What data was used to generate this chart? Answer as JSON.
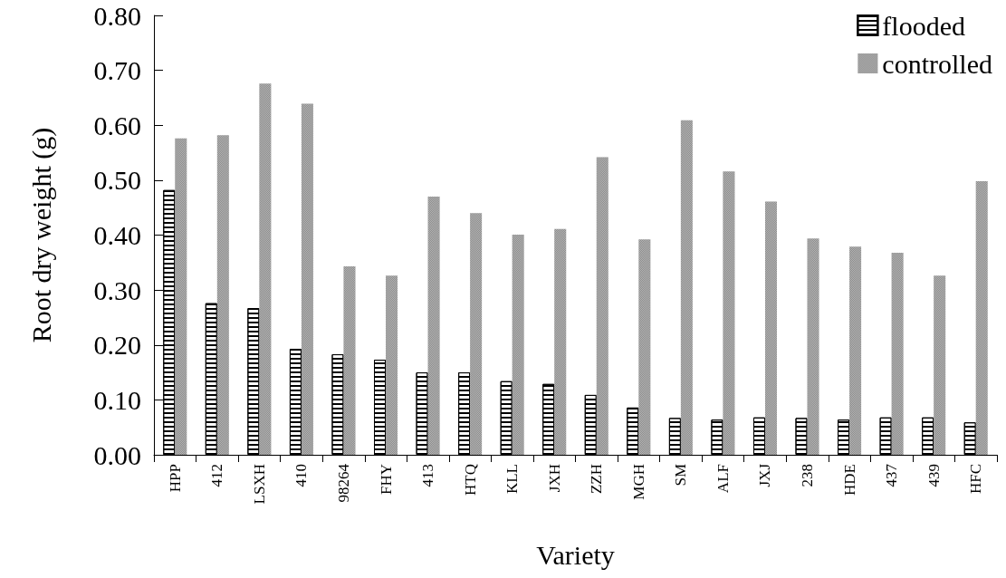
{
  "chart_data": {
    "type": "bar",
    "xlabel": "Variety",
    "ylabel": "Root dry weight (g)",
    "categories": [
      "HPP",
      "412",
      "LSXH",
      "410",
      "98264",
      "FHY",
      "413",
      "HTQ",
      "KLL",
      "JXH",
      "ZZH",
      "MGH",
      "SM",
      "ALF",
      "JXJ",
      "238",
      "HDE",
      "437",
      "439",
      "HFC"
    ],
    "series": [
      {
        "name": "flooded",
        "color": "#ffffff",
        "values": [
          0.482,
          0.276,
          0.267,
          0.193,
          0.183,
          0.173,
          0.15,
          0.15,
          0.134,
          0.129,
          0.109,
          0.086,
          0.067,
          0.064,
          0.068,
          0.067,
          0.064,
          0.068,
          0.068,
          0.059
        ]
      },
      {
        "name": "controlled",
        "color": "#8c8c8c",
        "values": [
          0.576,
          0.582,
          0.676,
          0.639,
          0.343,
          0.326,
          0.47,
          0.44,
          0.401,
          0.411,
          0.542,
          0.392,
          0.609,
          0.516,
          0.461,
          0.394,
          0.379,
          0.368,
          0.326,
          0.498
        ]
      }
    ],
    "ylim": [
      0,
      0.8
    ],
    "yticks": [
      {
        "value": 0,
        "label": "0.00"
      },
      {
        "value": 0.1,
        "label": "0.10"
      },
      {
        "value": 0.2,
        "label": "0.20"
      },
      {
        "value": 0.3,
        "label": "0.30"
      },
      {
        "value": 0.4,
        "label": "0.40"
      },
      {
        "value": 0.5,
        "label": "0.50"
      },
      {
        "value": 0.6,
        "label": "0.60"
      },
      {
        "value": 0.7,
        "label": "0.70"
      },
      {
        "value": 0.8,
        "label": "0.80"
      }
    ],
    "grid": false,
    "legend": "top right"
  }
}
